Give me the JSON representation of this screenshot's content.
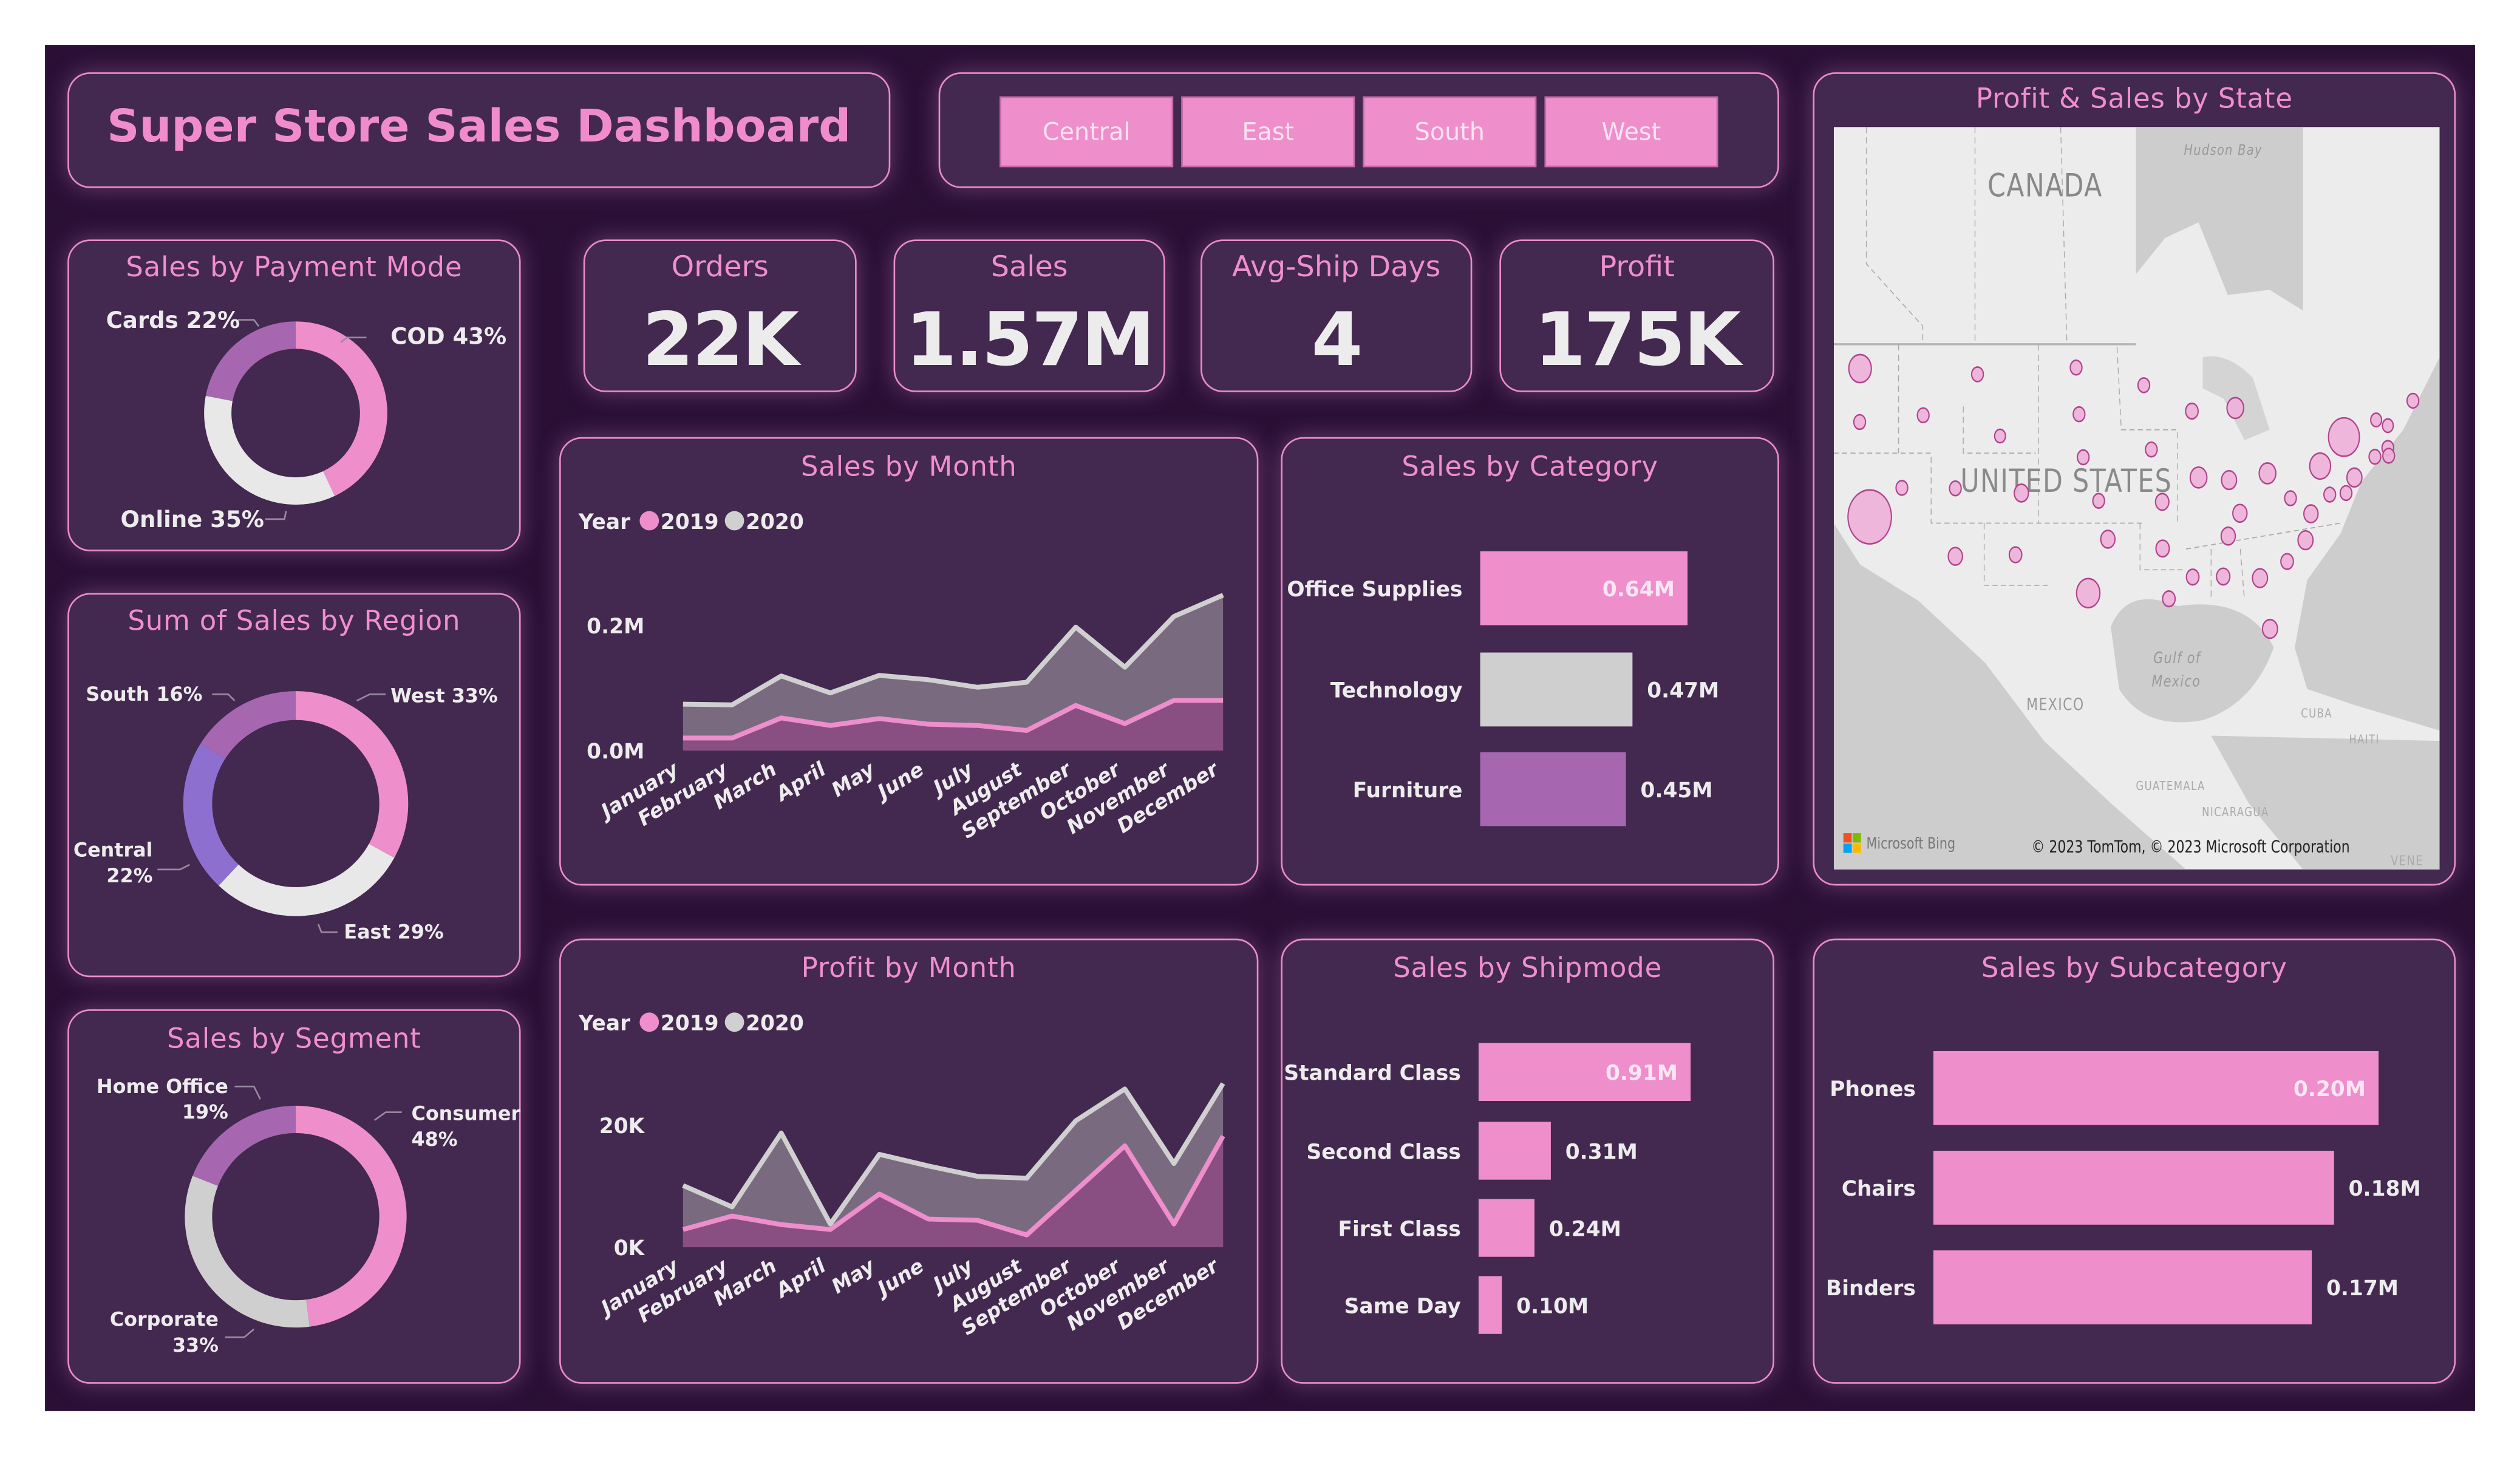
{
  "header": {
    "title": "Super Store Sales Dashboard"
  },
  "region_filter": {
    "buttons": [
      "Central",
      "East",
      "South",
      "West"
    ],
    "active_color": "#ee8ecb"
  },
  "kpis": [
    {
      "label": "Orders",
      "value": "22K"
    },
    {
      "label": "Sales",
      "value": "1.57M"
    },
    {
      "label": "Avg-Ship Days",
      "value": "4"
    },
    {
      "label": "Profit",
      "value": "175K"
    }
  ],
  "panels": {
    "payment": "Sales by Payment Mode",
    "region": "Sum of Sales by Region",
    "segment": "Sales by Segment",
    "sales_month": "Sales by Month",
    "profit_month": "Profit by Month",
    "category": "Sales by Category",
    "shipmode": "Sales by Shipmode",
    "subcategory": "Sales by Subcategory",
    "map": "Profit & Sales by State"
  },
  "map": {
    "labels": {
      "canada": "CANADA",
      "us": "UNITED STATES",
      "hudson": "Hudson Bay",
      "gulf1": "Gulf of",
      "gulf2": "Mexico",
      "mexico": "MEXICO",
      "cuba": "CUBA",
      "haiti": "HAITI",
      "guatemala": "GUATEMALA",
      "nicaragua": "NICARAGUA",
      "vene": "VENE"
    },
    "bing": "Microsoft Bing",
    "copyright": "© 2023 TomTom, © 2023 Microsoft Corporation",
    "bubble_color": "#eeb0d8"
  },
  "colors": {
    "pink": "#ee8ecb",
    "light": "#e8e8e8",
    "grey": "#cfcfcf",
    "purple": "#a667b0",
    "violet": "#8c6fcf",
    "panel": "#43284f",
    "background": "#2b1036"
  },
  "chart_data": [
    {
      "type": "area",
      "title": "Sales by Month",
      "stacked": true,
      "legend_title": "Year",
      "legend_position": "top-left",
      "categories": [
        "January",
        "February",
        "March",
        "April",
        "May",
        "June",
        "July",
        "August",
        "September",
        "October",
        "November",
        "December"
      ],
      "series": [
        {
          "name": "2019",
          "color": "#ee8ecb",
          "values": [
            0.02,
            0.02,
            0.052,
            0.04,
            0.051,
            0.042,
            0.04,
            0.032,
            0.072,
            0.043,
            0.08,
            0.08
          ]
        },
        {
          "name": "2020",
          "color": "#d0d0d0",
          "values": [
            0.054,
            0.053,
            0.067,
            0.052,
            0.069,
            0.071,
            0.061,
            0.077,
            0.125,
            0.09,
            0.134,
            0.168
          ]
        }
      ],
      "yticks": [
        {
          "value": 0,
          "label": "0.0M"
        },
        {
          "value": 0.2,
          "label": "0.2M"
        }
      ],
      "ylim": [
        0,
        0.26
      ],
      "grid": false
    },
    {
      "type": "area",
      "title": "Profit by Month",
      "stacked": true,
      "legend_title": "Year",
      "legend_position": "top-left",
      "categories": [
        "January",
        "February",
        "March",
        "April",
        "May",
        "June",
        "July",
        "August",
        "September",
        "October",
        "November",
        "December"
      ],
      "series": [
        {
          "name": "2019",
          "color": "#ee8ecb",
          "values": [
            2900,
            5100,
            3700,
            2900,
            8700,
            4600,
            4400,
            2000,
            9300,
            16600,
            3800,
            18200
          ]
        },
        {
          "name": "2020",
          "color": "#d0d0d0",
          "values": [
            7200,
            1500,
            15000,
            900,
            6500,
            8700,
            7200,
            9300,
            11400,
            9300,
            9900,
            8600
          ]
        }
      ],
      "yticks": [
        {
          "value": 0,
          "label": "0K"
        },
        {
          "value": 20000,
          "label": "20K"
        }
      ],
      "ylim": [
        0,
        28000
      ],
      "grid": false
    },
    {
      "type": "pie",
      "title": "Sales by Payment Mode",
      "donut": true,
      "slices": [
        {
          "name": "COD",
          "pct": "43%",
          "value": 43,
          "color": "#ee8ecb"
        },
        {
          "name": "Online",
          "pct": "35%",
          "value": 35,
          "color": "#e8e8e8"
        },
        {
          "name": "Cards",
          "pct": "22%",
          "value": 22,
          "color": "#a667b0"
        }
      ]
    },
    {
      "type": "pie",
      "title": "Sum of Sales by Region",
      "donut": true,
      "slices": [
        {
          "name": "West",
          "pct": "33%",
          "value": 33,
          "color": "#ee8ecb"
        },
        {
          "name": "East",
          "pct": "29%",
          "value": 29,
          "color": "#e8e8e8"
        },
        {
          "name": "Central",
          "pct": "22%",
          "value": 22,
          "color": "#8c6fcf"
        },
        {
          "name": "South",
          "pct": "16%",
          "value": 16,
          "color": "#a667b0"
        }
      ]
    },
    {
      "type": "pie",
      "title": "Sales by Segment",
      "donut": true,
      "slices": [
        {
          "name": "Consumer",
          "pct": "48%",
          "value": 48,
          "color": "#ee8ecb"
        },
        {
          "name": "Corporate",
          "pct": "33%",
          "value": 33,
          "color": "#cfcfcf"
        },
        {
          "name": "Home Office",
          "pct": "19%",
          "value": 19,
          "color": "#a667b0"
        }
      ]
    },
    {
      "type": "bar",
      "orientation": "horizontal",
      "title": "Sales by Category",
      "categories": [
        "Office Supplies",
        "Technology",
        "Furniture"
      ],
      "values": [
        0.64,
        0.47,
        0.45
      ],
      "labels": [
        "0.64M",
        "0.47M",
        "0.45M"
      ],
      "colors": [
        "#ee8ecb",
        "#cfcfcf",
        "#a667b0"
      ]
    },
    {
      "type": "bar",
      "orientation": "horizontal",
      "title": "Sales by Shipmode",
      "categories": [
        "Standard Class",
        "Second Class",
        "First Class",
        "Same Day"
      ],
      "values": [
        0.91,
        0.31,
        0.24,
        0.1
      ],
      "labels": [
        "0.91M",
        "0.31M",
        "0.24M",
        "0.10M"
      ],
      "colors": [
        "#ee8ecb",
        "#ee8ecb",
        "#ee8ecb",
        "#ee8ecb"
      ]
    },
    {
      "type": "bar",
      "orientation": "horizontal",
      "title": "Sales by Subcategory",
      "categories": [
        "Phones",
        "Chairs",
        "Binders"
      ],
      "values": [
        0.2,
        0.18,
        0.17
      ],
      "labels": [
        "0.20M",
        "0.18M",
        "0.17M"
      ],
      "colors": [
        "#ee8ecb",
        "#ee8ecb",
        "#ee8ecb"
      ]
    }
  ]
}
